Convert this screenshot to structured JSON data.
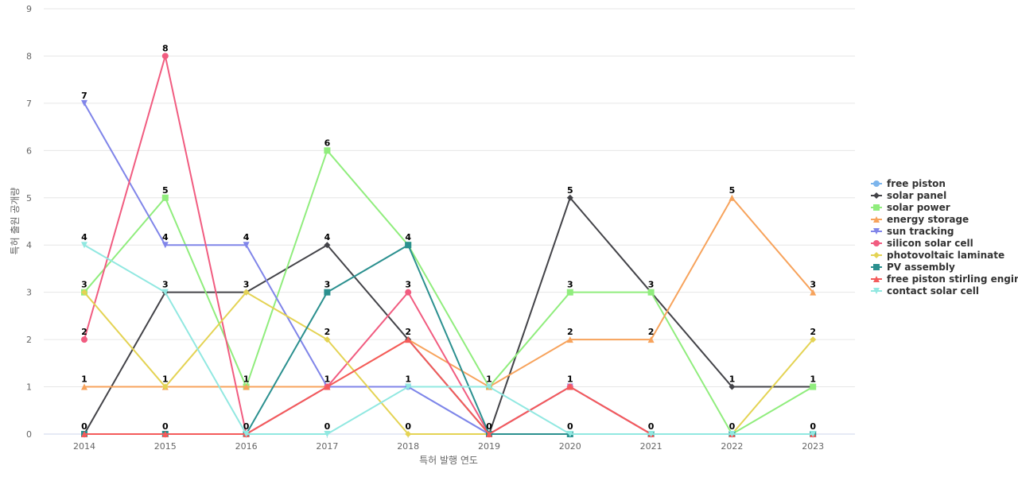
{
  "chart_data": {
    "type": "line",
    "title": "",
    "xlabel": "특허 발행 연도",
    "ylabel": "특허 출원 공개량",
    "categories": [
      "2014",
      "2015",
      "2016",
      "2017",
      "2018",
      "2019",
      "2020",
      "2021",
      "2022",
      "2023"
    ],
    "yticks": [
      "0",
      "1",
      "2",
      "3",
      "4",
      "5",
      "6",
      "7",
      "8",
      "9"
    ],
    "ylim": [
      0,
      9
    ],
    "grid": true,
    "legend_position": "right",
    "series": [
      {
        "name": "free piston",
        "color": "#7cb5ec",
        "marker": "circle",
        "values": [
          0,
          0,
          0,
          1,
          1,
          0,
          1,
          0,
          0,
          0
        ]
      },
      {
        "name": "solar panel",
        "color": "#434348",
        "marker": "diamond",
        "values": [
          0,
          3,
          3,
          4,
          2,
          0,
          5,
          3,
          1,
          1
        ]
      },
      {
        "name": "solar power",
        "color": "#90ed7d",
        "marker": "square",
        "values": [
          3,
          5,
          1,
          6,
          4,
          1,
          3,
          3,
          0,
          1
        ]
      },
      {
        "name": "energy storage",
        "color": "#f7a35c",
        "marker": "triangle",
        "values": [
          1,
          1,
          1,
          1,
          2,
          1,
          2,
          2,
          5,
          3
        ]
      },
      {
        "name": "sun tracking",
        "color": "#8085e9",
        "marker": "triangle-down",
        "values": [
          7,
          4,
          4,
          1,
          1,
          0,
          1,
          0,
          0,
          0
        ]
      },
      {
        "name": "silicon solar cell",
        "color": "#f15c80",
        "marker": "circle",
        "values": [
          2,
          8,
          0,
          1,
          3,
          0,
          1,
          0,
          0,
          0
        ]
      },
      {
        "name": "photovoltaic laminate",
        "color": "#e4d354",
        "marker": "diamond",
        "values": [
          3,
          1,
          3,
          2,
          0,
          0,
          0,
          0,
          0,
          2
        ]
      },
      {
        "name": "PV assembly",
        "color": "#2b908f",
        "marker": "square",
        "values": [
          0,
          0,
          0,
          3,
          4,
          0,
          0,
          0,
          0,
          0
        ]
      },
      {
        "name": "free piston stirling engine",
        "color": "#f45b5b",
        "marker": "triangle",
        "values": [
          0,
          0,
          0,
          1,
          2,
          0,
          1,
          0,
          0,
          0
        ]
      },
      {
        "name": "contact solar cell",
        "color": "#91e8e1",
        "marker": "triangle-down",
        "values": [
          4,
          3,
          0,
          0,
          1,
          1,
          0,
          0,
          0,
          0
        ]
      }
    ],
    "data_labels": [
      {
        "cat": 0,
        "v": 7
      },
      {
        "cat": 0,
        "v": 4
      },
      {
        "cat": 0,
        "v": 3
      },
      {
        "cat": 0,
        "v": 2
      },
      {
        "cat": 0,
        "v": 1
      },
      {
        "cat": 0,
        "v": 0
      },
      {
        "cat": 1,
        "v": 8
      },
      {
        "cat": 1,
        "v": 5
      },
      {
        "cat": 1,
        "v": 4
      },
      {
        "cat": 1,
        "v": 3
      },
      {
        "cat": 1,
        "v": 1
      },
      {
        "cat": 1,
        "v": 0
      },
      {
        "cat": 2,
        "v": 4
      },
      {
        "cat": 2,
        "v": 3
      },
      {
        "cat": 2,
        "v": 1
      },
      {
        "cat": 2,
        "v": 0
      },
      {
        "cat": 3,
        "v": 6
      },
      {
        "cat": 3,
        "v": 4
      },
      {
        "cat": 3,
        "v": 3
      },
      {
        "cat": 3,
        "v": 2
      },
      {
        "cat": 3,
        "v": 1
      },
      {
        "cat": 3,
        "v": 0
      },
      {
        "cat": 4,
        "v": 4
      },
      {
        "cat": 4,
        "v": 3
      },
      {
        "cat": 4,
        "v": 2
      },
      {
        "cat": 4,
        "v": 1
      },
      {
        "cat": 4,
        "v": 0
      },
      {
        "cat": 5,
        "v": 1
      },
      {
        "cat": 5,
        "v": 0
      },
      {
        "cat": 6,
        "v": 5
      },
      {
        "cat": 6,
        "v": 3
      },
      {
        "cat": 6,
        "v": 2
      },
      {
        "cat": 6,
        "v": 1
      },
      {
        "cat": 6,
        "v": 0
      },
      {
        "cat": 7,
        "v": 3
      },
      {
        "cat": 7,
        "v": 2
      },
      {
        "cat": 7,
        "v": 0
      },
      {
        "cat": 8,
        "v": 5
      },
      {
        "cat": 8,
        "v": 1
      },
      {
        "cat": 8,
        "v": 0
      },
      {
        "cat": 9,
        "v": 3
      },
      {
        "cat": 9,
        "v": 2
      },
      {
        "cat": 9,
        "v": 1
      },
      {
        "cat": 9,
        "v": 0
      }
    ]
  }
}
